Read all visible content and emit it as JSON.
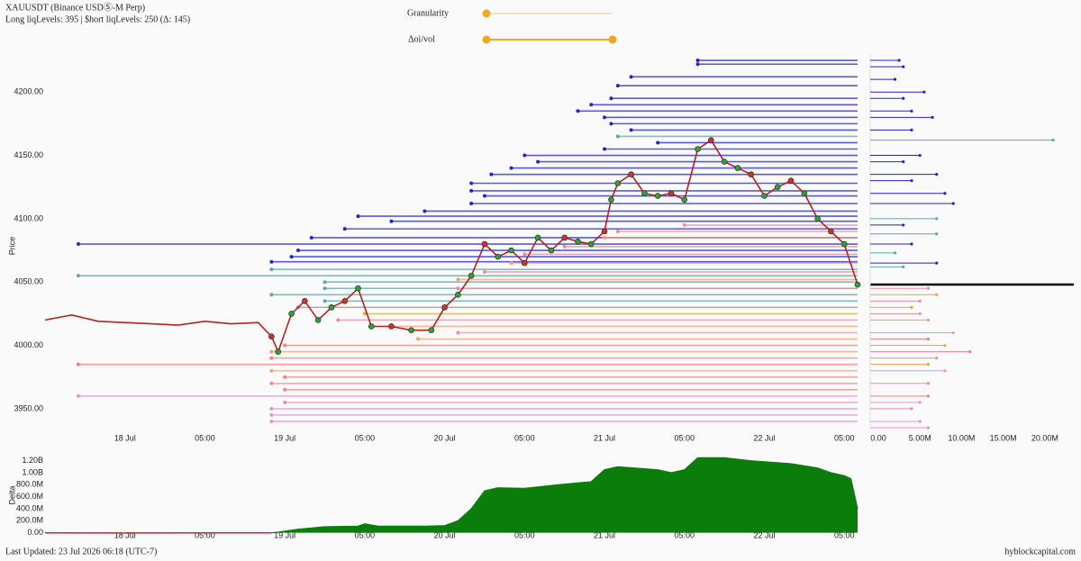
{
  "header": {
    "title": "XAUUSDT (Binance USDⓈ-M Perp)",
    "subtitle": "Long liqLevels: 395 | $hort liqLevels: 250 (Δ: 145)"
  },
  "controls": {
    "granularity": "Granularity",
    "oi_vol": "Δoi/vol"
  },
  "footer": {
    "updated": "Last Updated: 23 Jul 2026 06:18 (UTC-7)",
    "site": "hyblockcapital.com"
  },
  "chart_data": [
    {
      "type": "line",
      "y_label": "Price",
      "color": "#b22222",
      "xlim": [
        -12,
        110
      ],
      "ylim": [
        3935,
        4230
      ],
      "xticks": [
        {
          "value": 0,
          "label": "18 Jul"
        },
        {
          "value": 12,
          "label": "05:00"
        },
        {
          "value": 24,
          "label": "19 Jul"
        },
        {
          "value": 36,
          "label": "05:00"
        },
        {
          "value": 48,
          "label": "20 Jul"
        },
        {
          "value": 60,
          "label": "05:00"
        },
        {
          "value": 72,
          "label": "21 Jul"
        },
        {
          "value": 84,
          "label": "05:00"
        },
        {
          "value": 96,
          "label": "22 Jul"
        },
        {
          "value": 108,
          "label": "05:00"
        }
      ],
      "yticks": [
        {
          "value": 3950,
          "label": "3950.00"
        },
        {
          "value": 4000,
          "label": "4000.00"
        },
        {
          "value": 4050,
          "label": "4050.00"
        },
        {
          "value": 4100,
          "label": "4100.00"
        },
        {
          "value": 4150,
          "label": "4150.00"
        },
        {
          "value": 4200,
          "label": "4200.00"
        }
      ],
      "x": [
        -12,
        -8,
        -4,
        0,
        4,
        8,
        12,
        16,
        20,
        22,
        23,
        25,
        27,
        29,
        31,
        33,
        35,
        37,
        40,
        43,
        46,
        48,
        50,
        52,
        54,
        56,
        58,
        60,
        62,
        64,
        66,
        68,
        70,
        72,
        73,
        74,
        76,
        78,
        80,
        82,
        84,
        86,
        88,
        90,
        92,
        94,
        96,
        98,
        100,
        102,
        104,
        106,
        108,
        110
      ],
      "values": [
        4020,
        4024,
        4019,
        4018,
        4017,
        4016,
        4019,
        4017,
        4018,
        4007,
        3995,
        4025,
        4035,
        4020,
        4030,
        4035,
        4045,
        4015,
        4015,
        4012,
        4012,
        4030,
        4040,
        4055,
        4080,
        4070,
        4075,
        4065,
        4085,
        4075,
        4085,
        4082,
        4080,
        4090,
        4115,
        4128,
        4135,
        4120,
        4118,
        4120,
        4115,
        4155,
        4162,
        4145,
        4140,
        4135,
        4118,
        4125,
        4130,
        4120,
        4100,
        4090,
        4080,
        4048
      ],
      "liq_levels": [
        {
          "price": 4225,
          "start": 86,
          "color": "#2323d0"
        },
        {
          "price": 4222,
          "start": 86,
          "color": "#2323d0"
        },
        {
          "price": 4212,
          "start": 76,
          "color": "#2323d0"
        },
        {
          "price": 4205,
          "start": 74,
          "color": "#2323d0"
        },
        {
          "price": 4195,
          "start": 73,
          "color": "#2323d0"
        },
        {
          "price": 4190,
          "start": 70,
          "color": "#2323d0"
        },
        {
          "price": 4185,
          "start": 68,
          "color": "#2323d0"
        },
        {
          "price": 4180,
          "start": 72,
          "color": "#2323d0"
        },
        {
          "price": 4175,
          "start": 73,
          "color": "#2323d0"
        },
        {
          "price": 4170,
          "start": 76,
          "color": "#2323d0"
        },
        {
          "price": 4165,
          "start": 74,
          "color": "#5aa8a8"
        },
        {
          "price": 4160,
          "start": 80,
          "color": "#2323d0"
        },
        {
          "price": 4155,
          "start": 72,
          "color": "#2323d0"
        },
        {
          "price": 4150,
          "start": 60,
          "color": "#2323d0"
        },
        {
          "price": 4145,
          "start": 62,
          "color": "#2323d0"
        },
        {
          "price": 4140,
          "start": 58,
          "color": "#2323d0"
        },
        {
          "price": 4135,
          "start": 55,
          "color": "#2323d0"
        },
        {
          "price": 4128,
          "start": 52,
          "color": "#2323d0"
        },
        {
          "price": 4122,
          "start": 52,
          "color": "#2323d0"
        },
        {
          "price": 4118,
          "start": 54,
          "color": "#2323d0"
        },
        {
          "price": 4112,
          "start": 52,
          "color": "#2323d0"
        },
        {
          "price": 4106,
          "start": 45,
          "color": "#2323d0"
        },
        {
          "price": 4102,
          "start": 35,
          "color": "#2323d0"
        },
        {
          "price": 4098,
          "start": 40,
          "color": "#2323d0"
        },
        {
          "price": 4092,
          "start": 33,
          "color": "#2323d0"
        },
        {
          "price": 4085,
          "start": 28,
          "color": "#2323d0"
        },
        {
          "price": 4080,
          "start": -7,
          "color": "#2323d0"
        },
        {
          "price": 4075,
          "start": 26,
          "color": "#2323d0"
        },
        {
          "price": 4070,
          "start": 25,
          "color": "#2323d0"
        },
        {
          "price": 4066,
          "start": 22,
          "color": "#2323d0"
        },
        {
          "price": 4060,
          "start": 22,
          "color": "#5aa8a8"
        },
        {
          "price": 4055,
          "start": -7,
          "color": "#5aa8a8"
        },
        {
          "price": 4050,
          "start": 30,
          "color": "#5aa8a8"
        },
        {
          "price": 4045,
          "start": 30,
          "color": "#5aa8a8"
        },
        {
          "price": 4040,
          "start": 22,
          "color": "#5aa8a8"
        },
        {
          "price": 4035,
          "start": 30,
          "color": "#5aa8a8"
        },
        {
          "price": 4030,
          "start": 26,
          "color": "#8a9a8a"
        },
        {
          "price": 4095,
          "start": 84,
          "color": "#f08aa0"
        },
        {
          "price": 4090,
          "start": 74,
          "color": "#f08aa0"
        },
        {
          "price": 4085,
          "start": 72,
          "color": "#f4a070"
        },
        {
          "price": 4078,
          "start": 66,
          "color": "#f08aa0"
        },
        {
          "price": 4072,
          "start": 60,
          "color": "#f08aa0"
        },
        {
          "price": 4065,
          "start": 58,
          "color": "#f4a070"
        },
        {
          "price": 4058,
          "start": 54,
          "color": "#f08aa0"
        },
        {
          "price": 4052,
          "start": 50,
          "color": "#f4a070"
        },
        {
          "price": 4045,
          "start": 50,
          "color": "#f08aa0"
        },
        {
          "price": 4025,
          "start": 36,
          "color": "#f4a040"
        },
        {
          "price": 4020,
          "start": 32,
          "color": "#f08aa0"
        },
        {
          "price": 4015,
          "start": 40,
          "color": "#f4a070"
        },
        {
          "price": 4010,
          "start": 50,
          "color": "#f08aa0"
        },
        {
          "price": 4005,
          "start": 44,
          "color": "#f4a070"
        },
        {
          "price": 4000,
          "start": 24,
          "color": "#f08080"
        },
        {
          "price": 3995,
          "start": 22,
          "color": "#f4a070"
        },
        {
          "price": 3990,
          "start": 22,
          "color": "#f08080"
        },
        {
          "price": 3985,
          "start": -7,
          "color": "#f08080"
        },
        {
          "price": 3980,
          "start": 22,
          "color": "#f4a070"
        },
        {
          "price": 3975,
          "start": 24,
          "color": "#f08080"
        },
        {
          "price": 3970,
          "start": 22,
          "color": "#f08aa0"
        },
        {
          "price": 3965,
          "start": 24,
          "color": "#f08080"
        },
        {
          "price": 3960,
          "start": -7,
          "color": "#e890e0"
        },
        {
          "price": 3955,
          "start": 24,
          "color": "#f08aa0"
        },
        {
          "price": 3950,
          "start": 22,
          "color": "#e890e0"
        },
        {
          "price": 3945,
          "start": 22,
          "color": "#e890e0"
        },
        {
          "price": 3940,
          "start": 22,
          "color": "#e890e0"
        }
      ]
    },
    {
      "type": "hbar",
      "xlim": [
        0,
        23800000
      ],
      "ylim": [
        3935,
        4230
      ],
      "xticks": [
        {
          "value": 0,
          "label": "0.00"
        },
        {
          "value": 5000000,
          "label": "5.00M"
        },
        {
          "value": 10000000,
          "label": "10.00M"
        },
        {
          "value": 15000000,
          "label": "15.00M"
        },
        {
          "value": 20000000,
          "label": "20.00M"
        }
      ],
      "bars": [
        {
          "price": 4225,
          "size": 2500000,
          "color": "#2323d0"
        },
        {
          "price": 4220,
          "size": 3000000,
          "color": "#2323d0"
        },
        {
          "price": 4210,
          "size": 2000000,
          "color": "#2323d0"
        },
        {
          "price": 4200,
          "size": 5500000,
          "color": "#2323d0"
        },
        {
          "price": 4195,
          "size": 3000000,
          "color": "#2323d0"
        },
        {
          "price": 4185,
          "size": 4000000,
          "color": "#2323d0"
        },
        {
          "price": 4180,
          "size": 6500000,
          "color": "#2323d0"
        },
        {
          "price": 4170,
          "size": 4000000,
          "color": "#2323d0"
        },
        {
          "price": 4162,
          "size": 21000000,
          "color": "#5aa8a8"
        },
        {
          "price": 4150,
          "size": 5000000,
          "color": "#2323d0"
        },
        {
          "price": 4145,
          "size": 3000000,
          "color": "#2323d0"
        },
        {
          "price": 4135,
          "size": 7000000,
          "color": "#2323d0"
        },
        {
          "price": 4130,
          "size": 4000000,
          "color": "#2323d0"
        },
        {
          "price": 4120,
          "size": 8000000,
          "color": "#2323d0"
        },
        {
          "price": 4112,
          "size": 9000000,
          "color": "#2323d0"
        },
        {
          "price": 4100,
          "size": 7000000,
          "color": "#5aa8a8"
        },
        {
          "price": 4095,
          "size": 3000000,
          "color": "#2323d0"
        },
        {
          "price": 4088,
          "size": 7000000,
          "color": "#5aa8a8"
        },
        {
          "price": 4080,
          "size": 4000000,
          "color": "#2323d0"
        },
        {
          "price": 4073,
          "size": 2000000,
          "color": "#5aa8a8"
        },
        {
          "price": 4065,
          "size": 7000000,
          "color": "#2323d0"
        },
        {
          "price": 4062,
          "size": 3000000,
          "color": "#5aa8a8"
        },
        {
          "price": 4045,
          "size": 6000000,
          "color": "#f08aa0"
        },
        {
          "price": 4040,
          "size": 7000000,
          "color": "#f4a040"
        },
        {
          "price": 4035,
          "size": 5000000,
          "color": "#f08aa0"
        },
        {
          "price": 4030,
          "size": 4000000,
          "color": "#f4a040"
        },
        {
          "price": 4025,
          "size": 5000000,
          "color": "#f08aa0"
        },
        {
          "price": 4020,
          "size": 6000000,
          "color": "#f4a040"
        },
        {
          "price": 4010,
          "size": 9000000,
          "color": "#e890e0"
        },
        {
          "price": 4005,
          "size": 6000000,
          "color": "#f08080"
        },
        {
          "price": 4000,
          "size": 8000000,
          "color": "#f4a040"
        },
        {
          "price": 3995,
          "size": 11000000,
          "color": "#f08080"
        },
        {
          "price": 3990,
          "size": 7000000,
          "color": "#f08aa0"
        },
        {
          "price": 3985,
          "size": 6000000,
          "color": "#f4a040"
        },
        {
          "price": 3980,
          "size": 8000000,
          "color": "#e890e0"
        },
        {
          "price": 3970,
          "size": 6000000,
          "color": "#f08aa0"
        },
        {
          "price": 3960,
          "size": 6000000,
          "color": "#f08080"
        },
        {
          "price": 3955,
          "size": 5000000,
          "color": "#e890e0"
        },
        {
          "price": 3950,
          "size": 4000000,
          "color": "#f08aa0"
        },
        {
          "price": 3940,
          "size": 5000000,
          "color": "#e890e0"
        },
        {
          "price": 3935,
          "size": 6000000,
          "color": "#e890e0"
        }
      ]
    },
    {
      "type": "area",
      "y_label": "Delta",
      "color": "#0a7d0a",
      "negative_color": "#e02020",
      "xlim": [
        -12,
        110
      ],
      "ylim": [
        -50000000,
        1300000000
      ],
      "xticks": [
        {
          "value": 0,
          "label": "18 Jul"
        },
        {
          "value": 12,
          "label": "05:00"
        },
        {
          "value": 24,
          "label": "19 Jul"
        },
        {
          "value": 36,
          "label": "05:00"
        },
        {
          "value": 48,
          "label": "20 Jul"
        },
        {
          "value": 60,
          "label": "05:00"
        },
        {
          "value": 72,
          "label": "21 Jul"
        },
        {
          "value": 84,
          "label": "05:00"
        },
        {
          "value": 96,
          "label": "22 Jul"
        },
        {
          "value": 108,
          "label": "05:00"
        }
      ],
      "yticks": [
        {
          "value": 0,
          "label": "0.00"
        },
        {
          "value": 200000000,
          "label": "200.0M"
        },
        {
          "value": 400000000,
          "label": "400.0M"
        },
        {
          "value": 600000000,
          "label": "600.0M"
        },
        {
          "value": 800000000,
          "label": "800.0M"
        },
        {
          "value": 1000000000,
          "label": "1.00B"
        },
        {
          "value": 1200000000,
          "label": "1.20B"
        }
      ],
      "x": [
        -12,
        0,
        12,
        22,
        23,
        26,
        30,
        35,
        36,
        38,
        45,
        48,
        50,
        52,
        54,
        56,
        60,
        65,
        70,
        72,
        74,
        80,
        82,
        84,
        86,
        90,
        94,
        100,
        104,
        106,
        108,
        109,
        110
      ],
      "values": [
        -2000000,
        -3000000,
        -2000000,
        -1000000,
        10000000,
        60000000,
        100000000,
        110000000,
        150000000,
        110000000,
        110000000,
        120000000,
        200000000,
        400000000,
        700000000,
        750000000,
        740000000,
        800000000,
        850000000,
        1050000000,
        1100000000,
        1050000000,
        1000000000,
        1050000000,
        1250000000,
        1250000000,
        1200000000,
        1150000000,
        1080000000,
        1000000000,
        950000000,
        900000000,
        400000000
      ]
    }
  ]
}
